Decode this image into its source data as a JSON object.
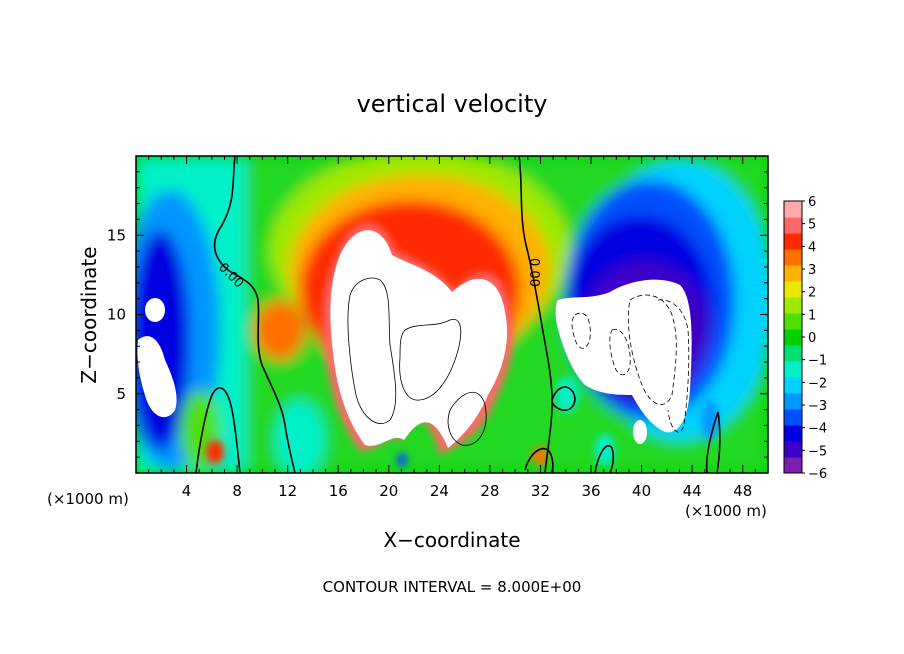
{
  "chart_data": {
    "type": "heatmap",
    "title": "vertical velocity",
    "xlabel": "X−coordinate",
    "ylabel": "Z−coordinate",
    "x_unit_left": "(×1000 m)",
    "x_unit_right": "(×1000 m)",
    "footer": "CONTOUR INTERVAL = 8.000E+00",
    "xlim": [
      0,
      50
    ],
    "ylim": [
      0,
      20
    ],
    "x_ticks": [
      4,
      8,
      12,
      16,
      20,
      24,
      28,
      32,
      36,
      40,
      44,
      48
    ],
    "x_tick_labels": [
      "4",
      "8",
      "12",
      "16",
      "20",
      "24",
      "28",
      "32",
      "36",
      "40",
      "44",
      "48"
    ],
    "y_ticks": [
      5,
      10,
      15
    ],
    "y_tick_labels": [
      "5",
      "10",
      "15"
    ],
    "colorbar": {
      "min": -6,
      "max": 6,
      "tick_labels": [
        "6",
        "5",
        "4",
        "3",
        "2",
        "1",
        "0",
        "−1",
        "−2",
        "−3",
        "−4",
        "−5",
        "−6"
      ],
      "colors": [
        "#7a1fb0",
        "#3a00c8",
        "#0000e0",
        "#0050ff",
        "#0096ff",
        "#00d2ff",
        "#00f0c8",
        "#00e070",
        "#00d000",
        "#50e000",
        "#a0e800",
        "#e8e800",
        "#ffb000",
        "#ff7000",
        "#ff2a00",
        "#ff6868",
        "#ffaaaa"
      ]
    },
    "contour_labels": [
      "0.00",
      "0.00"
    ],
    "grid": false,
    "legend": "colorbar-right"
  }
}
